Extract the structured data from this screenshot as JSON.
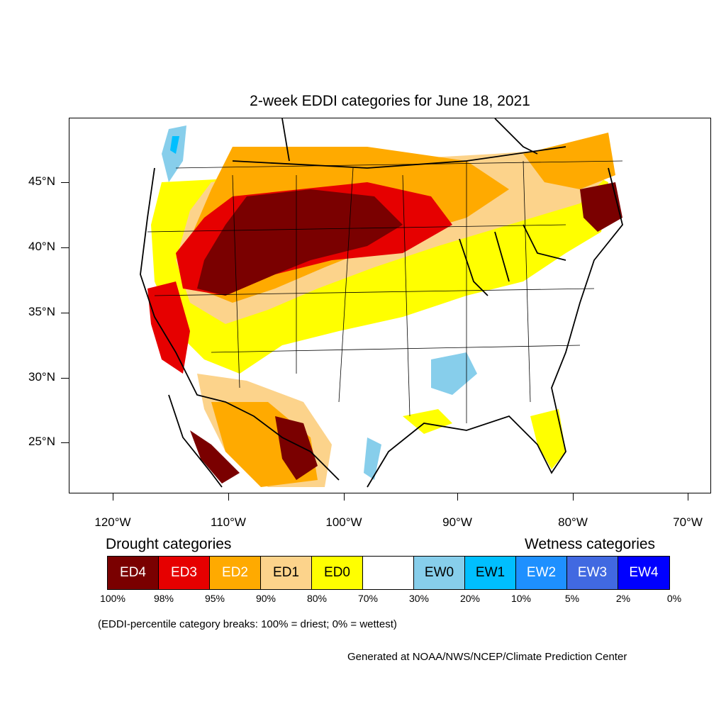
{
  "chart_data": {
    "type": "map",
    "title": "2-week EDDI categories for June 18, 2021",
    "y_axis_labels": [
      "45°N",
      "40°N",
      "35°N",
      "30°N",
      "25°N"
    ],
    "x_axis_labels": [
      "120°W",
      "110°W",
      "100°W",
      "90°W",
      "80°W",
      "70°W"
    ],
    "drought_title": "Drought categories",
    "wetness_title": "Wetness categories",
    "categories": [
      {
        "label": "ED4",
        "color": "#7a0000",
        "text_color": "#ffffff"
      },
      {
        "label": "ED3",
        "color": "#e60000",
        "text_color": "#ffffff"
      },
      {
        "label": "ED2",
        "color": "#ffaa00",
        "text_color": "#ffffff"
      },
      {
        "label": "ED1",
        "color": "#fcd38b",
        "text_color": "#000000"
      },
      {
        "label": "ED0",
        "color": "#ffff00",
        "text_color": "#000000"
      },
      {
        "label": "",
        "color": "#ffffff",
        "text_color": "#000000"
      },
      {
        "label": "EW0",
        "color": "#87ceeb",
        "text_color": "#000000"
      },
      {
        "label": "EW1",
        "color": "#00bfff",
        "text_color": "#000000"
      },
      {
        "label": "EW2",
        "color": "#1e90ff",
        "text_color": "#ffffff"
      },
      {
        "label": "EW3",
        "color": "#4169e1",
        "text_color": "#ffffff"
      },
      {
        "label": "EW4",
        "color": "#0000ff",
        "text_color": "#ffffff"
      }
    ],
    "percentile_breaks": [
      "100%",
      "98%",
      "95%",
      "90%",
      "80%",
      "70%",
      "30%",
      "20%",
      "10%",
      "5%",
      "2%",
      "0%"
    ],
    "note": "(EDDI-percentile category breaks: 100% = driest; 0% = wettest)",
    "credit": "Generated at NOAA/NWS/NCEP/Climate Prediction Center"
  }
}
